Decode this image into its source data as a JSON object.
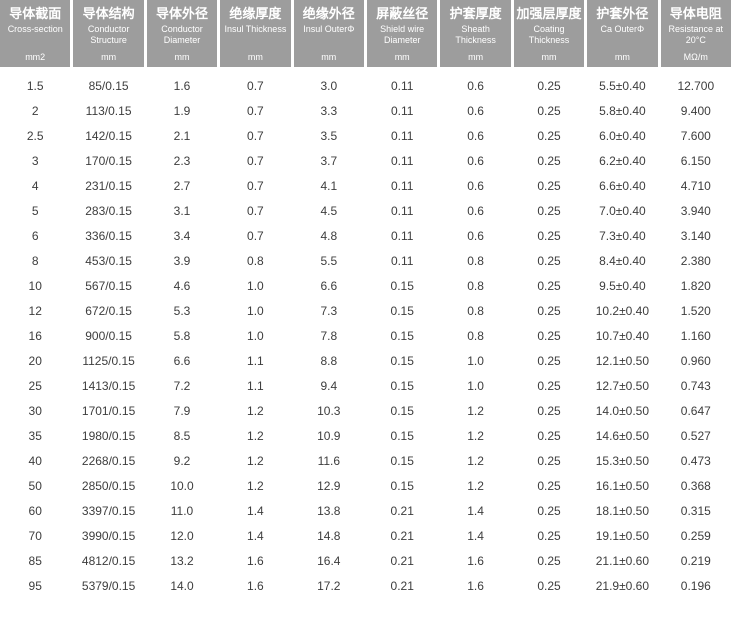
{
  "table": {
    "name": "cable-specification-table",
    "columns": [
      {
        "zh": "导体截面",
        "en": "Cross-section",
        "unit": "mm2"
      },
      {
        "zh": "导体结构",
        "en": "Conductor Structure",
        "unit": "mm"
      },
      {
        "zh": "导体外径",
        "en": "Conductor Diameter",
        "unit": "mm"
      },
      {
        "zh": "绝缘厚度",
        "en": "Insul Thickness",
        "unit": "mm"
      },
      {
        "zh": "绝缘外径",
        "en": "Insul OuterΦ",
        "unit": "mm"
      },
      {
        "zh": "屏蔽丝径",
        "en": "Shield wire Diameter",
        "unit": "mm"
      },
      {
        "zh": "护套厚度",
        "en": "Sheath Thickness",
        "unit": "mm"
      },
      {
        "zh": "加强层厚度",
        "en": "Coating Thickness",
        "unit": "mm"
      },
      {
        "zh": "护套外径",
        "en": "Ca OuterΦ",
        "unit": "mm"
      },
      {
        "zh": "导体电阻",
        "en": "Resistance at 20°C",
        "unit": "MΩ/m"
      }
    ],
    "rows": [
      [
        "1.5",
        "85/0.15",
        "1.6",
        "0.7",
        "3.0",
        "0.11",
        "0.6",
        "0.25",
        "5.5±0.40",
        "12.700"
      ],
      [
        "2",
        "113/0.15",
        "1.9",
        "0.7",
        "3.3",
        "0.11",
        "0.6",
        "0.25",
        "5.8±0.40",
        "9.400"
      ],
      [
        "2.5",
        "142/0.15",
        "2.1",
        "0.7",
        "3.5",
        "0.11",
        "0.6",
        "0.25",
        "6.0±0.40",
        "7.600"
      ],
      [
        "3",
        "170/0.15",
        "2.3",
        "0.7",
        "3.7",
        "0.11",
        "0.6",
        "0.25",
        "6.2±0.40",
        "6.150"
      ],
      [
        "4",
        "231/0.15",
        "2.7",
        "0.7",
        "4.1",
        "0.11",
        "0.6",
        "0.25",
        "6.6±0.40",
        "4.710"
      ],
      [
        "5",
        "283/0.15",
        "3.1",
        "0.7",
        "4.5",
        "0.11",
        "0.6",
        "0.25",
        "7.0±0.40",
        "3.940"
      ],
      [
        "6",
        "336/0.15",
        "3.4",
        "0.7",
        "4.8",
        "0.11",
        "0.6",
        "0.25",
        "7.3±0.40",
        "3.140"
      ],
      [
        "8",
        "453/0.15",
        "3.9",
        "0.8",
        "5.5",
        "0.11",
        "0.8",
        "0.25",
        "8.4±0.40",
        "2.380"
      ],
      [
        "10",
        "567/0.15",
        "4.6",
        "1.0",
        "6.6",
        "0.15",
        "0.8",
        "0.25",
        "9.5±0.40",
        "1.820"
      ],
      [
        "12",
        "672/0.15",
        "5.3",
        "1.0",
        "7.3",
        "0.15",
        "0.8",
        "0.25",
        "10.2±0.40",
        "1.520"
      ],
      [
        "16",
        "900/0.15",
        "5.8",
        "1.0",
        "7.8",
        "0.15",
        "0.8",
        "0.25",
        "10.7±0.40",
        "1.160"
      ],
      [
        "20",
        "1125/0.15",
        "6.6",
        "1.1",
        "8.8",
        "0.15",
        "1.0",
        "0.25",
        "12.1±0.50",
        "0.960"
      ],
      [
        "25",
        "1413/0.15",
        "7.2",
        "1.1",
        "9.4",
        "0.15",
        "1.0",
        "0.25",
        "12.7±0.50",
        "0.743"
      ],
      [
        "30",
        "1701/0.15",
        "7.9",
        "1.2",
        "10.3",
        "0.15",
        "1.2",
        "0.25",
        "14.0±0.50",
        "0.647"
      ],
      [
        "35",
        "1980/0.15",
        "8.5",
        "1.2",
        "10.9",
        "0.15",
        "1.2",
        "0.25",
        "14.6±0.50",
        "0.527"
      ],
      [
        "40",
        "2268/0.15",
        "9.2",
        "1.2",
        "11.6",
        "0.15",
        "1.2",
        "0.25",
        "15.3±0.50",
        "0.473"
      ],
      [
        "50",
        "2850/0.15",
        "10.0",
        "1.2",
        "12.9",
        "0.15",
        "1.2",
        "0.25",
        "16.1±0.50",
        "0.368"
      ],
      [
        "60",
        "3397/0.15",
        "11.0",
        "1.4",
        "13.8",
        "0.21",
        "1.4",
        "0.25",
        "18.1±0.50",
        "0.315"
      ],
      [
        "70",
        "3990/0.15",
        "12.0",
        "1.4",
        "14.8",
        "0.21",
        "1.4",
        "0.25",
        "19.1±0.50",
        "0.259"
      ],
      [
        "85",
        "4812/0.15",
        "13.2",
        "1.6",
        "16.4",
        "0.21",
        "1.6",
        "0.25",
        "21.1±0.60",
        "0.219"
      ],
      [
        "95",
        "5379/0.15",
        "14.0",
        "1.6",
        "17.2",
        "0.21",
        "1.6",
        "0.25",
        "21.9±0.60",
        "0.196"
      ]
    ]
  },
  "colors": {
    "header_bg": "#9d9d9d",
    "header_text": "#ffffff",
    "body_text": "#3d3d3d",
    "background": "#ffffff"
  }
}
